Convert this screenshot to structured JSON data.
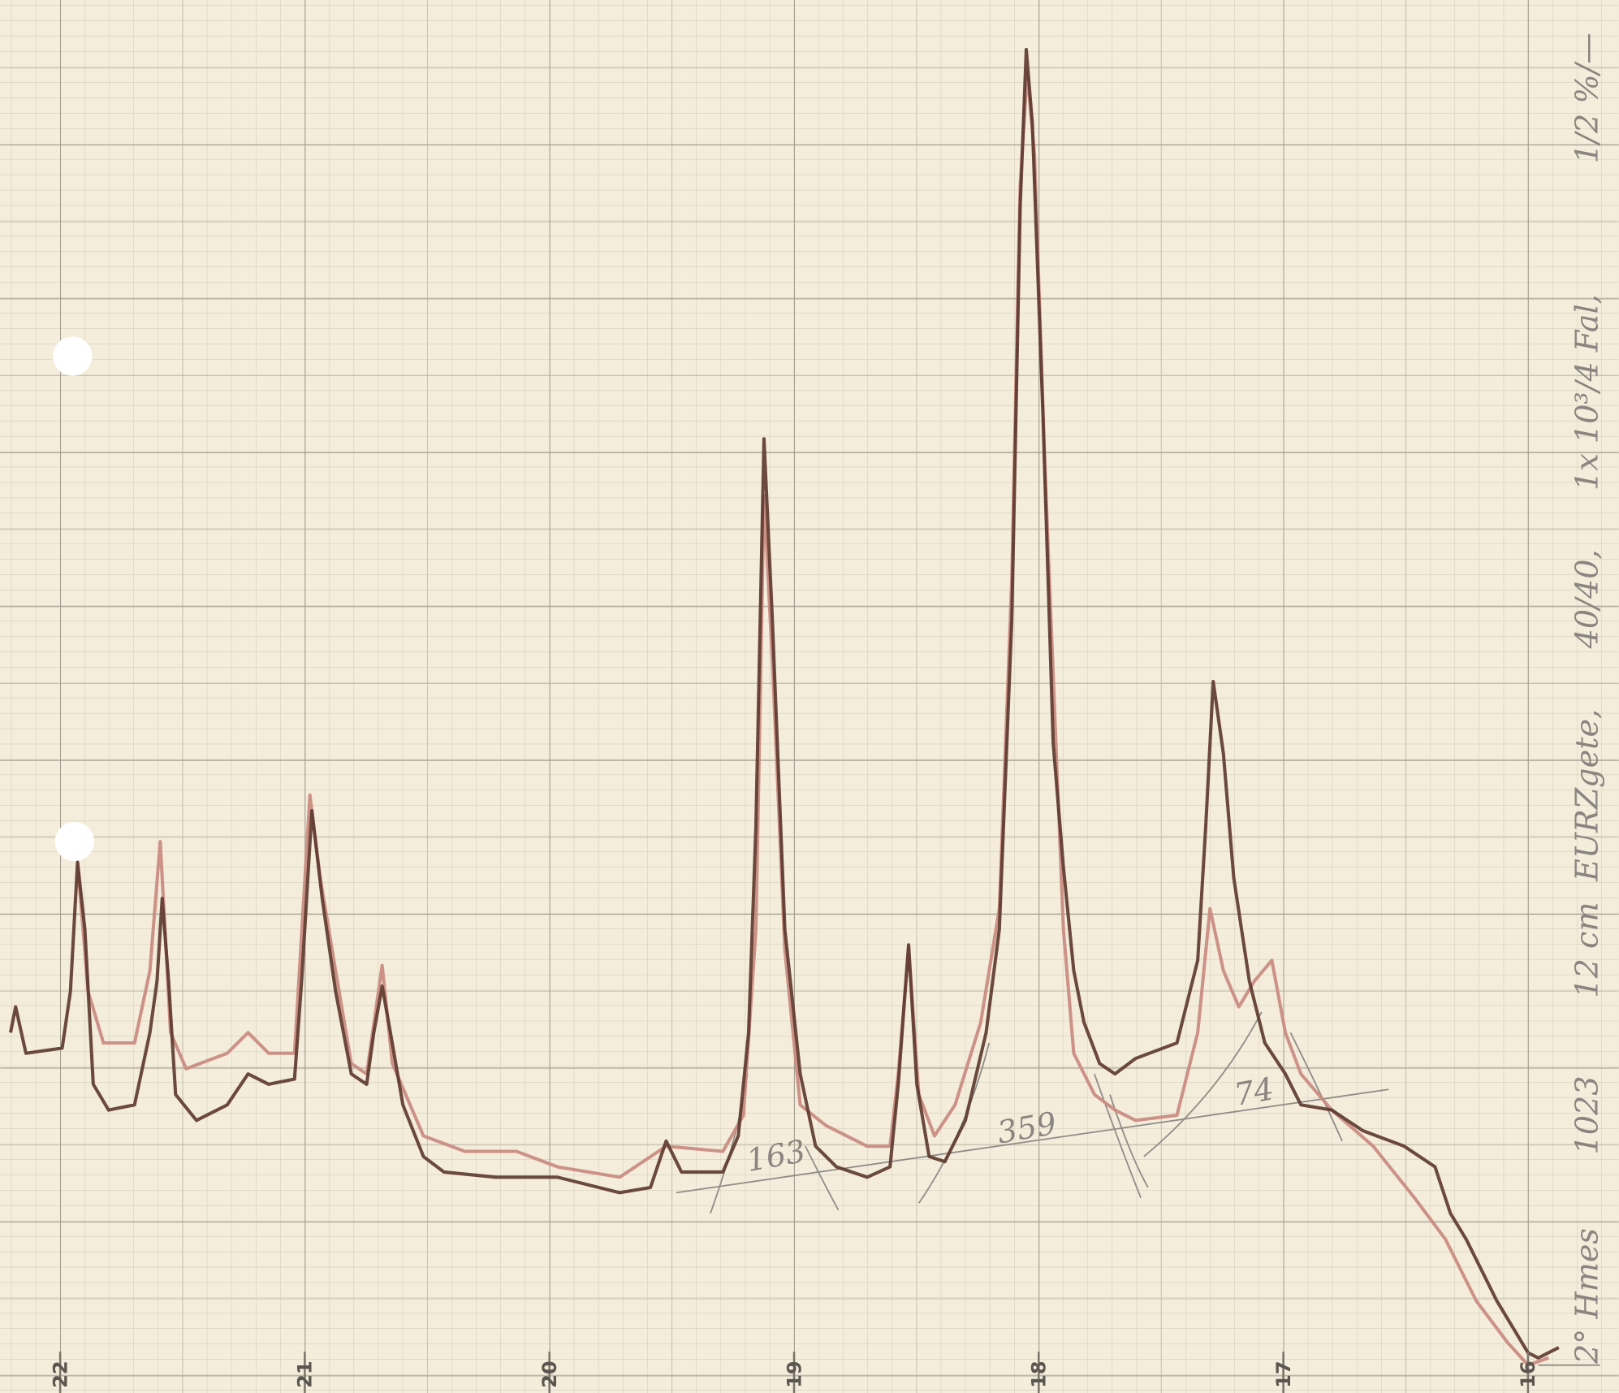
{
  "chart_data": {
    "type": "line",
    "xlim": [
      22.245,
      15.629
    ],
    "ylim": [
      0,
      1349
    ],
    "xticks": [
      22,
      21,
      20,
      19,
      18,
      17,
      16
    ],
    "grid": true,
    "annotations": [
      "163",
      "359",
      "74",
      "2° Hmes",
      "1023",
      "12 cm",
      "EURZgete,",
      "40/40,",
      "1x 10³/4 Fal,",
      "1/2 %/—"
    ],
    "series": [
      {
        "color": "#5e3b30",
        "x": [
          22.203,
          22.182,
          22.14,
          21.992,
          21.958,
          21.929,
          21.899,
          21.865,
          21.802,
          21.696,
          21.633,
          21.604,
          21.583,
          21.557,
          21.528,
          21.443,
          21.317,
          21.232,
          21.148,
          21.042,
          21.013,
          20.971,
          20.929,
          20.874,
          20.81,
          20.747,
          20.718,
          20.684,
          20.65,
          20.599,
          20.515,
          20.431,
          20.22,
          19.967,
          19.713,
          19.587,
          19.523,
          19.46,
          19.291,
          19.228,
          19.186,
          19.156,
          19.123,
          19.089,
          19.038,
          18.975,
          18.912,
          18.827,
          18.701,
          18.608,
          18.574,
          18.532,
          18.498,
          18.448,
          18.384,
          18.3,
          18.215,
          18.161,
          18.11,
          18.076,
          18.051,
          18.026,
          17.983,
          17.941,
          17.899,
          17.857,
          17.815,
          17.751,
          17.688,
          17.604,
          17.435,
          17.35,
          17.317,
          17.287,
          17.245,
          17.203,
          17.139,
          17.076,
          16.992,
          16.928,
          16.802,
          16.675,
          16.506,
          16.38,
          16.317,
          16.253,
          16.127,
          16.0,
          15.958,
          15.874
        ],
        "values": [
          349,
          374,
          329,
          334,
          389,
          514,
          449,
          299,
          274,
          279,
          349,
          399,
          479,
          399,
          289,
          264,
          279,
          309,
          299,
          304,
          399,
          564,
          479,
          389,
          309,
          299,
          349,
          394,
          349,
          279,
          229,
          214,
          209,
          209,
          194,
          199,
          244,
          214,
          214,
          249,
          349,
          549,
          924,
          749,
          449,
          309,
          239,
          219,
          209,
          219,
          299,
          434,
          299,
          229,
          224,
          264,
          349,
          449,
          749,
          1149,
          1301,
          1229,
          949,
          629,
          509,
          409,
          359,
          319,
          309,
          324,
          339,
          419,
          549,
          689,
          619,
          499,
          399,
          339,
          309,
          279,
          274,
          254,
          239,
          219,
          174,
          149,
          89,
          39,
          34,
          44
        ]
      },
      {
        "color": "#c98a80",
        "x": [
          21.929,
          21.886,
          21.823,
          21.696,
          21.633,
          21.591,
          21.549,
          21.485,
          21.317,
          21.232,
          21.148,
          21.042,
          20.979,
          20.937,
          20.874,
          20.81,
          20.747,
          20.684,
          20.642,
          20.515,
          20.346,
          20.135,
          19.967,
          19.713,
          19.523,
          19.291,
          19.207,
          19.156,
          19.123,
          19.089,
          19.038,
          18.975,
          18.87,
          18.701,
          18.608,
          18.574,
          18.532,
          18.49,
          18.426,
          18.342,
          18.237,
          18.161,
          18.11,
          18.076,
          18.047,
          18.017,
          17.975,
          17.933,
          17.899,
          17.857,
          17.772,
          17.688,
          17.604,
          17.435,
          17.35,
          17.3,
          17.245,
          17.182,
          17.118,
          17.047,
          16.992,
          16.928,
          16.802,
          16.633,
          16.464,
          16.338,
          16.211,
          16.084,
          16.0,
          15.916
        ],
        "values": [
          514,
          389,
          339,
          339,
          409,
          534,
          349,
          314,
          329,
          349,
          329,
          329,
          579,
          499,
          409,
          319,
          309,
          414,
          319,
          249,
          234,
          234,
          219,
          209,
          239,
          234,
          269,
          449,
          869,
          709,
          429,
          279,
          259,
          239,
          239,
          309,
          431,
          289,
          249,
          279,
          359,
          469,
          789,
          1169,
          1279,
          1199,
          899,
          649,
          449,
          329,
          289,
          274,
          264,
          269,
          349,
          469,
          409,
          374,
          399,
          419,
          349,
          309,
          274,
          239,
          189,
          149,
          89,
          49,
          27,
          34
        ]
      }
    ]
  }
}
